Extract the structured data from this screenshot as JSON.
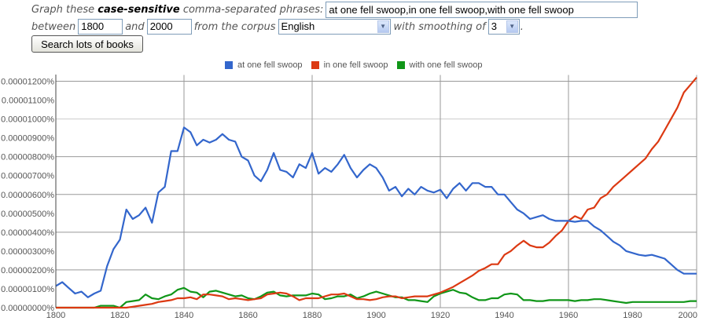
{
  "form": {
    "graph_prefix": "Graph these",
    "case_sensitive": "case-sensitive",
    "graph_suffix": "comma-separated phrases:",
    "phrases_value": "at one fell swoop,in one fell swoop,with one fell swoop",
    "between_label": "between",
    "start_year": "1800",
    "and_label": "and",
    "end_year": "2000",
    "corpus_label": "from the corpus",
    "corpus_value": "English",
    "smoothing_label": "with smoothing of",
    "smoothing_value": "3",
    "period": ".",
    "search_button": "Search lots of books"
  },
  "chart_data": {
    "type": "line",
    "title": "",
    "xlabel": "",
    "ylabel": "",
    "xlim": [
      1800,
      2000
    ],
    "ylim": [
      0,
      1.2e-05
    ],
    "grid": true,
    "legend_position": "top",
    "x_ticks": [
      "1800",
      "1820",
      "1840",
      "1860",
      "1880",
      "1900",
      "1920",
      "1940",
      "1960",
      "1980",
      "2000"
    ],
    "y_ticks": [
      "0.00000000%",
      "0.00000100%",
      "0.00000200%",
      "0.00000300%",
      "0.00000400%",
      "0.00000500%",
      "0.00000600%",
      "0.00000700%",
      "0.00000800%",
      "0.00000900%",
      "0.00001000%",
      "0.00001100%",
      "0.00001200%"
    ],
    "y_unit": "% (values in units of 0.000001%)",
    "x": [
      1800,
      1802,
      1804,
      1806,
      1808,
      1810,
      1812,
      1814,
      1816,
      1818,
      1820,
      1822,
      1824,
      1826,
      1828,
      1830,
      1832,
      1834,
      1836,
      1838,
      1840,
      1842,
      1844,
      1846,
      1848,
      1850,
      1852,
      1854,
      1856,
      1858,
      1860,
      1862,
      1864,
      1866,
      1868,
      1870,
      1872,
      1874,
      1876,
      1878,
      1880,
      1882,
      1884,
      1886,
      1888,
      1890,
      1892,
      1894,
      1896,
      1898,
      1900,
      1902,
      1904,
      1906,
      1908,
      1910,
      1912,
      1914,
      1916,
      1918,
      1920,
      1922,
      1924,
      1926,
      1928,
      1930,
      1932,
      1934,
      1936,
      1938,
      1940,
      1942,
      1944,
      1946,
      1948,
      1950,
      1952,
      1954,
      1956,
      1958,
      1960,
      1962,
      1964,
      1966,
      1968,
      1970,
      1972,
      1974,
      1976,
      1978,
      1980,
      1982,
      1984,
      1986,
      1988,
      1990,
      1992,
      1994,
      1996,
      1998,
      2000
    ],
    "series": [
      {
        "name": "at one fell swoop",
        "color": "#3366cc",
        "values": [
          1.15,
          1.35,
          1.05,
          0.75,
          0.85,
          0.55,
          0.75,
          0.9,
          2.2,
          3.1,
          3.6,
          5.2,
          4.7,
          4.9,
          5.3,
          4.5,
          6.1,
          6.4,
          8.3,
          8.3,
          9.55,
          9.3,
          8.6,
          8.9,
          8.75,
          8.9,
          9.2,
          8.9,
          8.8,
          8.0,
          7.8,
          7.0,
          6.7,
          7.3,
          8.2,
          7.3,
          7.2,
          6.9,
          7.6,
          7.4,
          8.2,
          7.1,
          7.4,
          7.2,
          7.6,
          8.1,
          7.4,
          6.9,
          7.3,
          7.6,
          7.4,
          6.9,
          6.2,
          6.4,
          5.9,
          6.3,
          6.0,
          6.4,
          6.2,
          6.1,
          6.25,
          5.8,
          6.3,
          6.6,
          6.2,
          6.6,
          6.6,
          6.4,
          6.4,
          6.0,
          6.0,
          5.6,
          5.2,
          5.0,
          4.7,
          4.8,
          4.9,
          4.7,
          4.6,
          4.6,
          4.6,
          4.55,
          4.6,
          4.6,
          4.3,
          4.1,
          3.8,
          3.5,
          3.3,
          3.0,
          2.9,
          2.8,
          2.75,
          2.8,
          2.7,
          2.6,
          2.3,
          2.0,
          1.8,
          1.8,
          1.8
        ]
      },
      {
        "name": "in one fell swoop",
        "color": "#dc3912",
        "values": [
          0.0,
          0.0,
          0.0,
          0.0,
          0.0,
          0.0,
          0.0,
          0.0,
          0.0,
          0.0,
          0.0,
          0.0,
          0.05,
          0.1,
          0.15,
          0.2,
          0.3,
          0.35,
          0.4,
          0.5,
          0.5,
          0.55,
          0.45,
          0.7,
          0.7,
          0.65,
          0.6,
          0.45,
          0.5,
          0.45,
          0.4,
          0.45,
          0.5,
          0.7,
          0.75,
          0.8,
          0.75,
          0.6,
          0.4,
          0.5,
          0.5,
          0.5,
          0.6,
          0.7,
          0.7,
          0.75,
          0.6,
          0.45,
          0.45,
          0.4,
          0.45,
          0.55,
          0.6,
          0.6,
          0.5,
          0.55,
          0.6,
          0.6,
          0.6,
          0.7,
          0.8,
          0.95,
          1.1,
          1.3,
          1.5,
          1.7,
          1.95,
          2.1,
          2.3,
          2.3,
          2.8,
          3.0,
          3.3,
          3.55,
          3.3,
          3.2,
          3.2,
          3.45,
          3.8,
          4.1,
          4.6,
          4.85,
          4.7,
          5.2,
          5.3,
          5.8,
          6.0,
          6.4,
          6.7,
          7.0,
          7.3,
          7.6,
          7.9,
          8.4,
          8.8,
          9.4,
          10.0,
          10.6,
          11.4,
          11.8,
          12.2
        ]
      },
      {
        "name": "with one fell swoop",
        "color": "#109618",
        "values": [
          0.0,
          0.0,
          0.0,
          0.0,
          0.0,
          0.0,
          0.0,
          0.1,
          0.1,
          0.1,
          0.0,
          0.3,
          0.35,
          0.4,
          0.7,
          0.5,
          0.45,
          0.6,
          0.7,
          0.95,
          1.05,
          0.85,
          0.8,
          0.55,
          0.85,
          0.9,
          0.8,
          0.7,
          0.6,
          0.65,
          0.5,
          0.45,
          0.6,
          0.8,
          0.85,
          0.65,
          0.6,
          0.65,
          0.65,
          0.65,
          0.75,
          0.7,
          0.45,
          0.5,
          0.6,
          0.6,
          0.7,
          0.5,
          0.6,
          0.75,
          0.85,
          0.75,
          0.65,
          0.55,
          0.55,
          0.4,
          0.4,
          0.35,
          0.3,
          0.6,
          0.75,
          0.85,
          0.95,
          0.8,
          0.75,
          0.55,
          0.4,
          0.4,
          0.5,
          0.5,
          0.7,
          0.75,
          0.7,
          0.4,
          0.4,
          0.35,
          0.35,
          0.4,
          0.4,
          0.4,
          0.4,
          0.35,
          0.4,
          0.4,
          0.45,
          0.45,
          0.4,
          0.35,
          0.3,
          0.25,
          0.3,
          0.3,
          0.3,
          0.3,
          0.3,
          0.3,
          0.3,
          0.3,
          0.3,
          0.35,
          0.35
        ]
      }
    ]
  }
}
